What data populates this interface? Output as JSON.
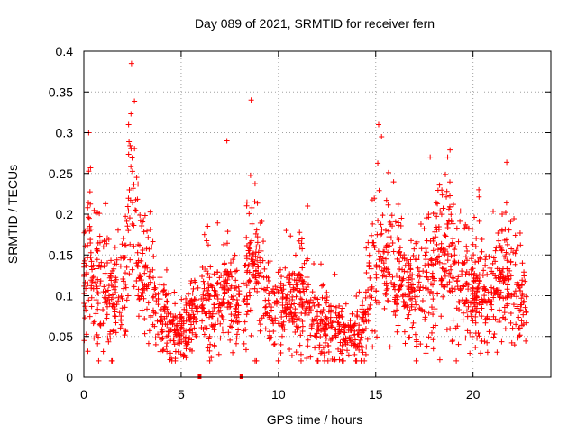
{
  "chart_data": {
    "type": "scatter",
    "title": "Day 089 of 2021, SRMTID for receiver fern",
    "xlabel": "GPS time / hours",
    "ylabel": "SRMTID / TECUs",
    "xlim": [
      0,
      24
    ],
    "ylim": [
      0,
      0.4
    ],
    "grid": true,
    "marker": "plus",
    "color": "#ff0000",
    "x_ticks": [
      0,
      5,
      10,
      15,
      20
    ],
    "x_tick_labels": [
      "0",
      "5",
      "10",
      "15",
      "20"
    ],
    "y_ticks": [
      0,
      0.05,
      0.1,
      0.15,
      0.2,
      0.25,
      0.3,
      0.35,
      0.4
    ],
    "y_tick_labels": [
      "0",
      "0.05",
      "0.1",
      "0.15",
      "0.2",
      "0.25",
      "0.3",
      "0.35",
      "0.4"
    ],
    "gap_markers_x": [
      5.95,
      8.1
    ],
    "envelope": [
      {
        "x": 0.0,
        "y": 0.1
      },
      {
        "x": 0.3,
        "y": 0.16
      },
      {
        "x": 0.6,
        "y": 0.13
      },
      {
        "x": 1.0,
        "y": 0.11
      },
      {
        "x": 1.5,
        "y": 0.09
      },
      {
        "x": 2.0,
        "y": 0.11
      },
      {
        "x": 2.4,
        "y": 0.2
      },
      {
        "x": 2.8,
        "y": 0.14
      },
      {
        "x": 3.3,
        "y": 0.11
      },
      {
        "x": 3.8,
        "y": 0.08
      },
      {
        "x": 4.3,
        "y": 0.07
      },
      {
        "x": 4.8,
        "y": 0.06
      },
      {
        "x": 5.2,
        "y": 0.06
      },
      {
        "x": 5.6,
        "y": 0.08
      },
      {
        "x": 5.95,
        "y": 0.09
      },
      {
        "x": 6.4,
        "y": 0.1
      },
      {
        "x": 7.0,
        "y": 0.09
      },
      {
        "x": 7.4,
        "y": 0.11
      },
      {
        "x": 7.8,
        "y": 0.08
      },
      {
        "x": 8.3,
        "y": 0.11
      },
      {
        "x": 8.7,
        "y": 0.14
      },
      {
        "x": 9.2,
        "y": 0.12
      },
      {
        "x": 9.8,
        "y": 0.08
      },
      {
        "x": 10.4,
        "y": 0.08
      },
      {
        "x": 11.0,
        "y": 0.1
      },
      {
        "x": 11.5,
        "y": 0.09
      },
      {
        "x": 12.0,
        "y": 0.07
      },
      {
        "x": 12.6,
        "y": 0.065
      },
      {
        "x": 13.2,
        "y": 0.06
      },
      {
        "x": 13.8,
        "y": 0.055
      },
      {
        "x": 14.3,
        "y": 0.06
      },
      {
        "x": 14.8,
        "y": 0.12
      },
      {
        "x": 15.3,
        "y": 0.16
      },
      {
        "x": 15.8,
        "y": 0.13
      },
      {
        "x": 16.5,
        "y": 0.11
      },
      {
        "x": 17.0,
        "y": 0.1
      },
      {
        "x": 17.5,
        "y": 0.12
      },
      {
        "x": 18.0,
        "y": 0.13
      },
      {
        "x": 18.5,
        "y": 0.16
      },
      {
        "x": 19.0,
        "y": 0.13
      },
      {
        "x": 19.5,
        "y": 0.12
      },
      {
        "x": 20.0,
        "y": 0.11
      },
      {
        "x": 20.5,
        "y": 0.1
      },
      {
        "x": 21.0,
        "y": 0.1
      },
      {
        "x": 21.5,
        "y": 0.13
      },
      {
        "x": 22.0,
        "y": 0.12
      },
      {
        "x": 22.4,
        "y": 0.1
      },
      {
        "x": 22.75,
        "y": 0.08
      }
    ],
    "spikes": [
      {
        "x": 0.25,
        "y": 0.3
      },
      {
        "x": 2.45,
        "y": 0.385
      },
      {
        "x": 2.3,
        "y": 0.31
      },
      {
        "x": 7.35,
        "y": 0.29
      },
      {
        "x": 8.6,
        "y": 0.34
      },
      {
        "x": 15.15,
        "y": 0.31
      },
      {
        "x": 15.3,
        "y": 0.295
      },
      {
        "x": 17.8,
        "y": 0.27
      },
      {
        "x": 20.3,
        "y": 0.23
      },
      {
        "x": 21.5,
        "y": 0.2
      },
      {
        "x": 11.5,
        "y": 0.21
      },
      {
        "x": 10.4,
        "y": 0.18
      },
      {
        "x": 6.2,
        "y": 0.175
      }
    ],
    "points_per_hour": 90
  }
}
